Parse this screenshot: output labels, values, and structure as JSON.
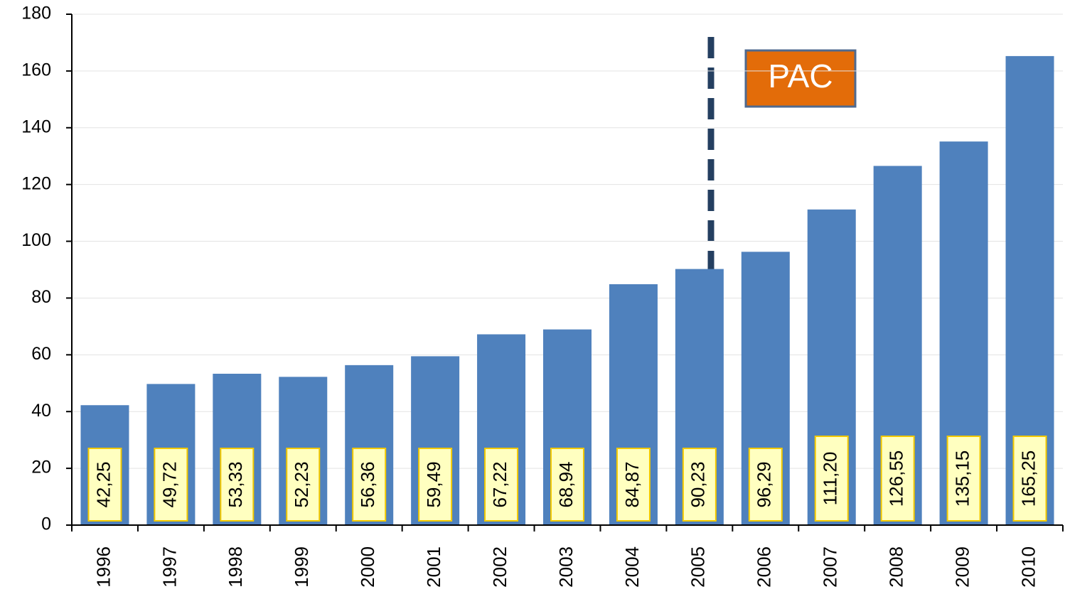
{
  "chart_data": {
    "type": "bar",
    "categories": [
      "1996",
      "1997",
      "1998",
      "1999",
      "2000",
      "2001",
      "2002",
      "2003",
      "2004",
      "2005",
      "2006",
      "2007",
      "2008",
      "2009",
      "2010"
    ],
    "values": [
      42.25,
      49.72,
      53.33,
      52.23,
      56.36,
      59.49,
      67.22,
      68.94,
      84.87,
      90.23,
      96.29,
      111.2,
      126.55,
      135.15,
      165.25
    ],
    "value_labels": [
      "42,25",
      "49,72",
      "53,33",
      "52,23",
      "56,36",
      "59,49",
      "67,22",
      "68,94",
      "84,87",
      "90,23",
      "96,29",
      "111,20",
      "126,55",
      "135,15",
      "165,25"
    ],
    "color": "#4f81bd",
    "ylim": [
      0,
      180
    ],
    "yticks": [
      0,
      20,
      40,
      60,
      80,
      100,
      120,
      140,
      160,
      180
    ],
    "grid": true,
    "annotation": "PAC"
  }
}
